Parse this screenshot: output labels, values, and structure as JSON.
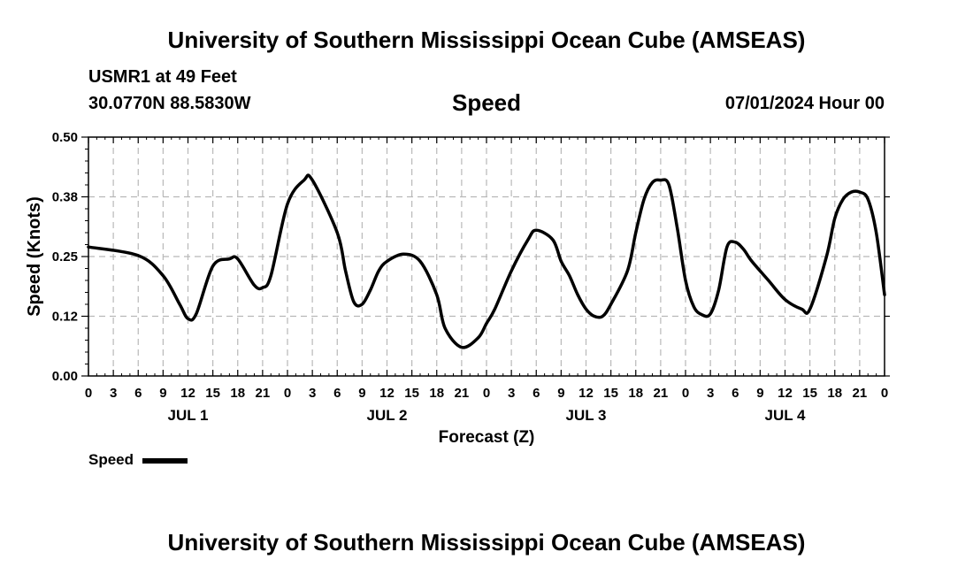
{
  "header": {
    "title": "University of Southern Mississippi Ocean Cube (AMSEAS)",
    "station": "USMR1 at 49 Feet",
    "coords": "30.0770N  88.5830W",
    "date": "07/01/2024 Hour 00"
  },
  "footer": {
    "title": "University of Southern Mississippi Ocean Cube (AMSEAS)"
  },
  "chart_data": {
    "type": "line",
    "title": "Speed",
    "xlabel": "Forecast (Z)",
    "ylabel": "Speed (Knots)",
    "xlim": [
      0,
      96
    ],
    "ylim": [
      0,
      0.5
    ],
    "yticks": [
      "0.00",
      "0.12",
      "0.25",
      "0.38",
      "0.50"
    ],
    "yticks_values": [
      0,
      0.125,
      0.25,
      0.375,
      0.5
    ],
    "xtick_labels": [
      "0",
      "3",
      "6",
      "9",
      "12",
      "15",
      "18",
      "21",
      "0",
      "3",
      "6",
      "9",
      "12",
      "15",
      "18",
      "21",
      "0",
      "3",
      "6",
      "9",
      "12",
      "15",
      "18",
      "21",
      "0",
      "3",
      "6",
      "9",
      "12",
      "15",
      "18",
      "21",
      "0"
    ],
    "day_labels": [
      {
        "label": "JUL 1",
        "hour": 12
      },
      {
        "label": "JUL 2",
        "hour": 36
      },
      {
        "label": "JUL 3",
        "hour": 60
      },
      {
        "label": "JUL 4",
        "hour": 84
      }
    ],
    "grid": true,
    "legend": {
      "label": "Speed",
      "position": "bottom-left"
    },
    "series": [
      {
        "name": "Speed",
        "x": [
          0,
          6,
          9,
          11,
          12,
          13,
          15,
          17,
          18,
          20,
          21,
          22,
          24,
          26,
          27,
          30,
          31,
          32,
          33,
          34,
          35,
          36,
          38,
          40,
          42,
          43,
          45,
          47,
          48,
          49,
          51,
          53,
          54,
          56,
          57,
          58,
          59,
          60,
          61,
          62,
          63,
          65,
          66,
          67,
          68,
          69,
          70,
          71,
          72,
          73,
          74,
          75,
          76,
          77,
          78,
          79,
          80,
          82,
          84,
          86,
          87,
          89,
          90,
          91,
          92,
          93,
          94,
          95,
          96
        ],
        "y": [
          0.27,
          0.252,
          0.21,
          0.15,
          0.12,
          0.13,
          0.23,
          0.245,
          0.245,
          0.19,
          0.185,
          0.21,
          0.36,
          0.41,
          0.41,
          0.3,
          0.22,
          0.155,
          0.15,
          0.18,
          0.22,
          0.24,
          0.255,
          0.24,
          0.17,
          0.1,
          0.06,
          0.08,
          0.11,
          0.14,
          0.22,
          0.285,
          0.305,
          0.285,
          0.24,
          0.21,
          0.17,
          0.14,
          0.125,
          0.125,
          0.15,
          0.22,
          0.3,
          0.37,
          0.405,
          0.41,
          0.4,
          0.31,
          0.2,
          0.145,
          0.128,
          0.13,
          0.18,
          0.27,
          0.28,
          0.265,
          0.24,
          0.2,
          0.16,
          0.14,
          0.14,
          0.25,
          0.33,
          0.37,
          0.385,
          0.385,
          0.37,
          0.3,
          0.17
        ]
      }
    ]
  }
}
